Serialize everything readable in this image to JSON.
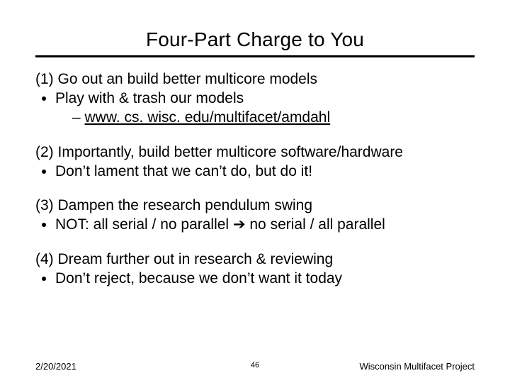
{
  "title": "Four-Part Charge to You",
  "blocks": {
    "b1": {
      "lead": "(1) Go out an build better multicore models",
      "bullet": "Play with & trash our models",
      "sub": "www. cs. wisc. edu/multifacet/amdahl"
    },
    "b2": {
      "lead": "(2) Importantly, build better multicore software/hardware",
      "bullet": "Don’t lament that we can’t do, but do it!"
    },
    "b3": {
      "lead": "(3) Dampen the research pendulum swing",
      "bullet_pre": "NOT: all serial / no parallel ",
      "arrow": "➔",
      "bullet_post": " no serial / all parallel"
    },
    "b4": {
      "lead": "(4) Dream further out in research & reviewing",
      "bullet": "Don’t reject, because we don’t want it today"
    }
  },
  "footer": {
    "date": "2/20/2021",
    "page": "46",
    "project": "Wisconsin Multifacet Project"
  },
  "colors": {
    "text": "#000000",
    "background": "#ffffff",
    "rule": "#000000"
  },
  "fonts": {
    "title_size_pt": 28,
    "body_size_pt": 21,
    "footer_size_pt": 13
  }
}
